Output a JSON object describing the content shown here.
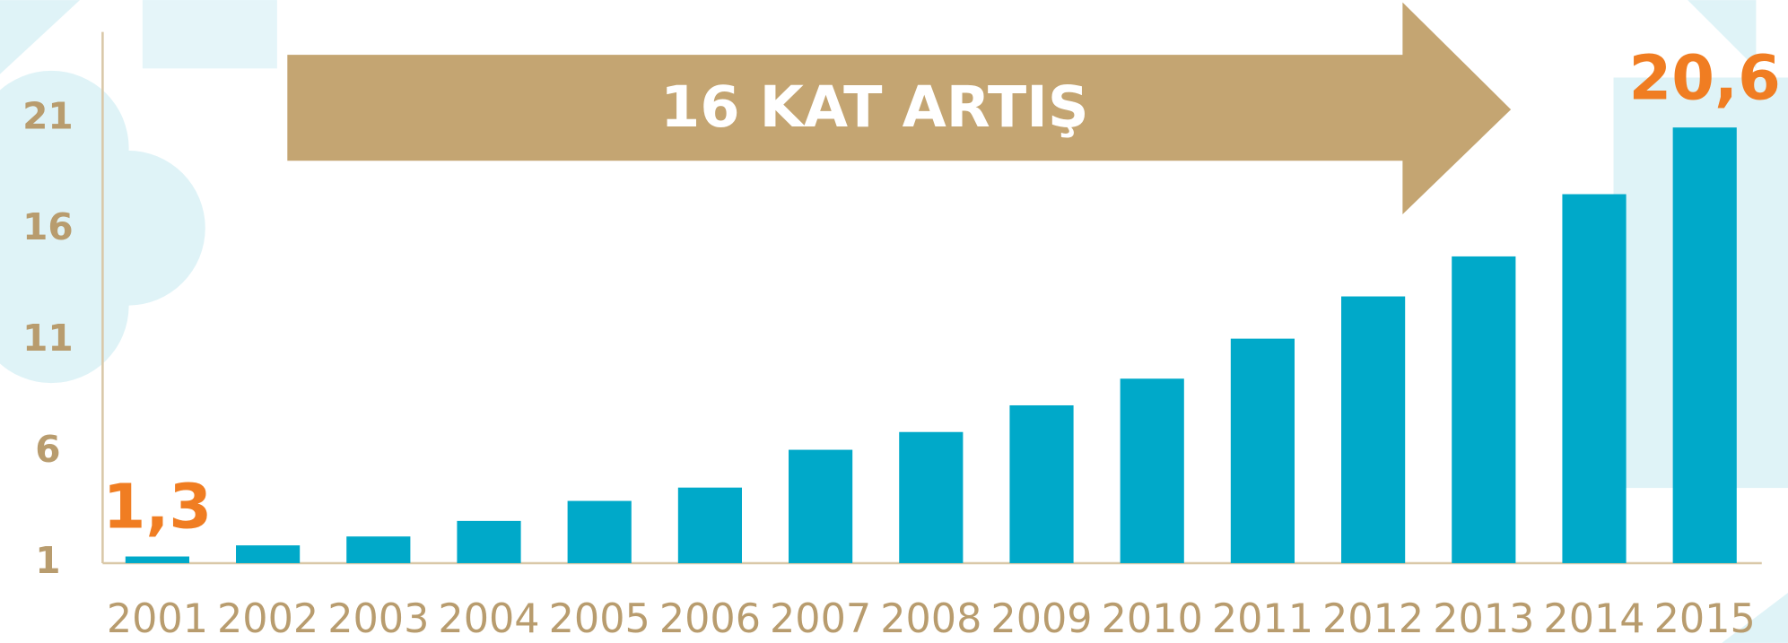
{
  "chart_data": {
    "type": "bar",
    "annotation": "16 KAT ARTIŞ",
    "categories": [
      "2001",
      "2002",
      "2003",
      "2004",
      "2005",
      "2006",
      "2007",
      "2008",
      "2009",
      "2010",
      "2011",
      "2012",
      "2013",
      "2014",
      "2015"
    ],
    "values": [
      1.3,
      1.8,
      2.2,
      2.9,
      3.8,
      4.4,
      6.1,
      6.9,
      8.1,
      9.3,
      11.1,
      13.0,
      14.8,
      17.6,
      20.6
    ],
    "value_labels": [
      "1,3",
      null,
      null,
      null,
      null,
      null,
      null,
      null,
      null,
      null,
      null,
      null,
      null,
      null,
      "20,6"
    ],
    "color": "#00a9c9",
    "ylim": [
      1,
      25
    ],
    "yticks": [
      1,
      6,
      11,
      16,
      21
    ],
    "grid": false
  }
}
